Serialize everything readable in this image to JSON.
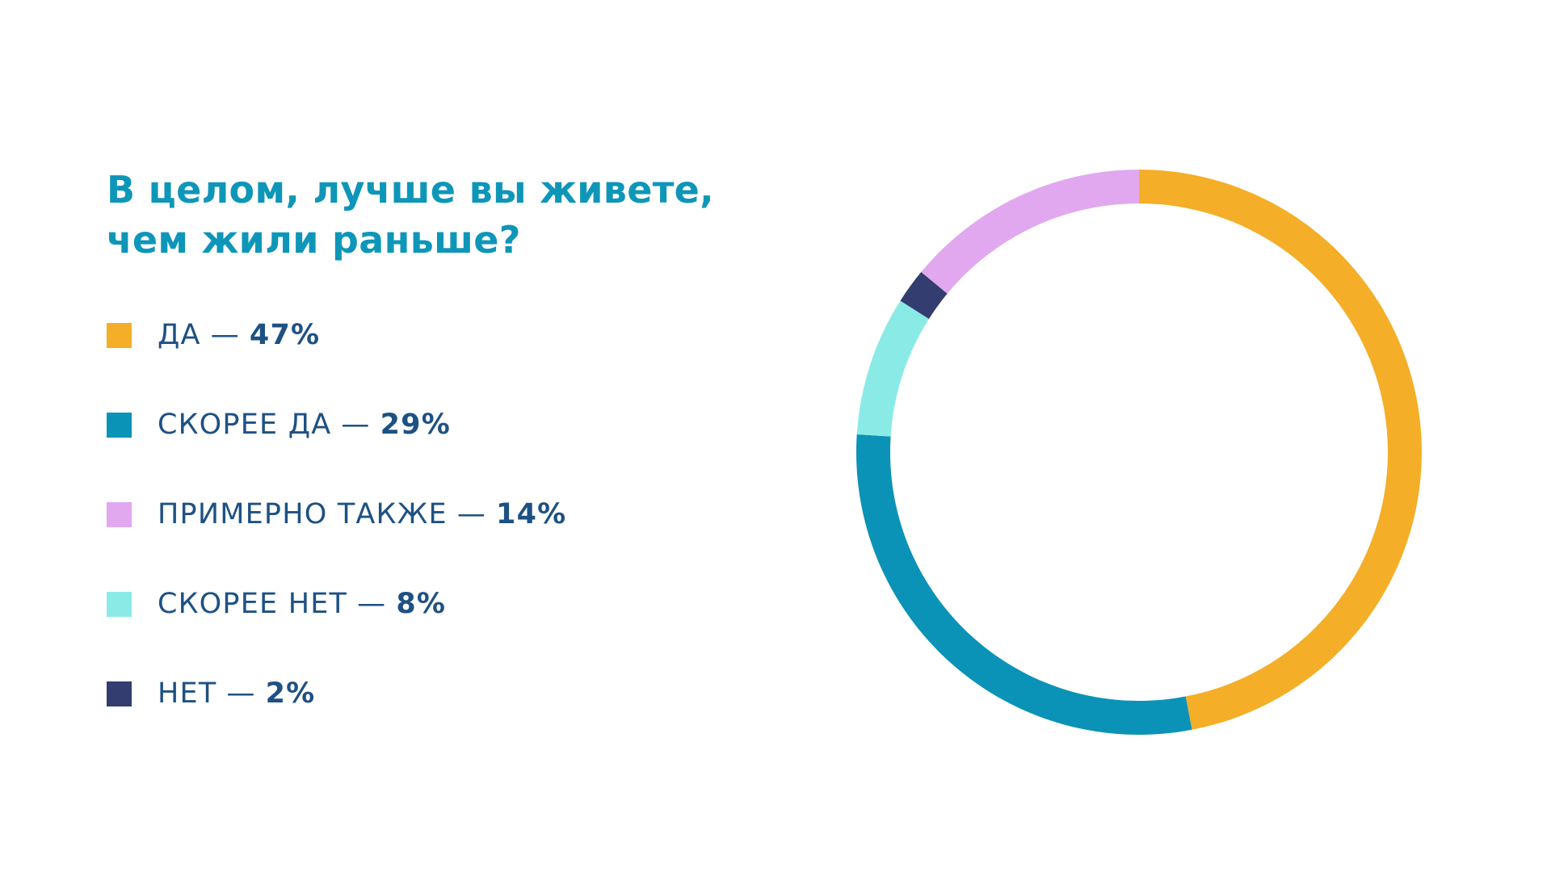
{
  "chart_data": {
    "type": "pie",
    "donut": true,
    "title": "В целом, лучше вы живете, чем жили раньше?",
    "legend_position": "left",
    "separator": "—",
    "slices": [
      {
        "label": "ДА",
        "value": 47,
        "display": "47%",
        "color": "#f4ae27"
      },
      {
        "label": "СКОРЕЕ ДА",
        "value": 29,
        "display": "29%",
        "color": "#0b93b7"
      },
      {
        "label": "СКОРЕЕ НЕТ",
        "value": 8,
        "display": "8%",
        "color": "#8aebe6"
      },
      {
        "label": "НЕТ",
        "value": 2,
        "display": "2%",
        "color": "#333d70"
      },
      {
        "label": "ПРИМЕРНО ТАКЖЕ",
        "value": 14,
        "display": "14%",
        "color": "#e1a8ef"
      }
    ],
    "legend_order": [
      "ДА",
      "СКОРЕЕ ДА",
      "ПРИМЕРНО ТАКЖЕ",
      "СКОРЕЕ НЕТ",
      "НЕТ"
    ]
  }
}
